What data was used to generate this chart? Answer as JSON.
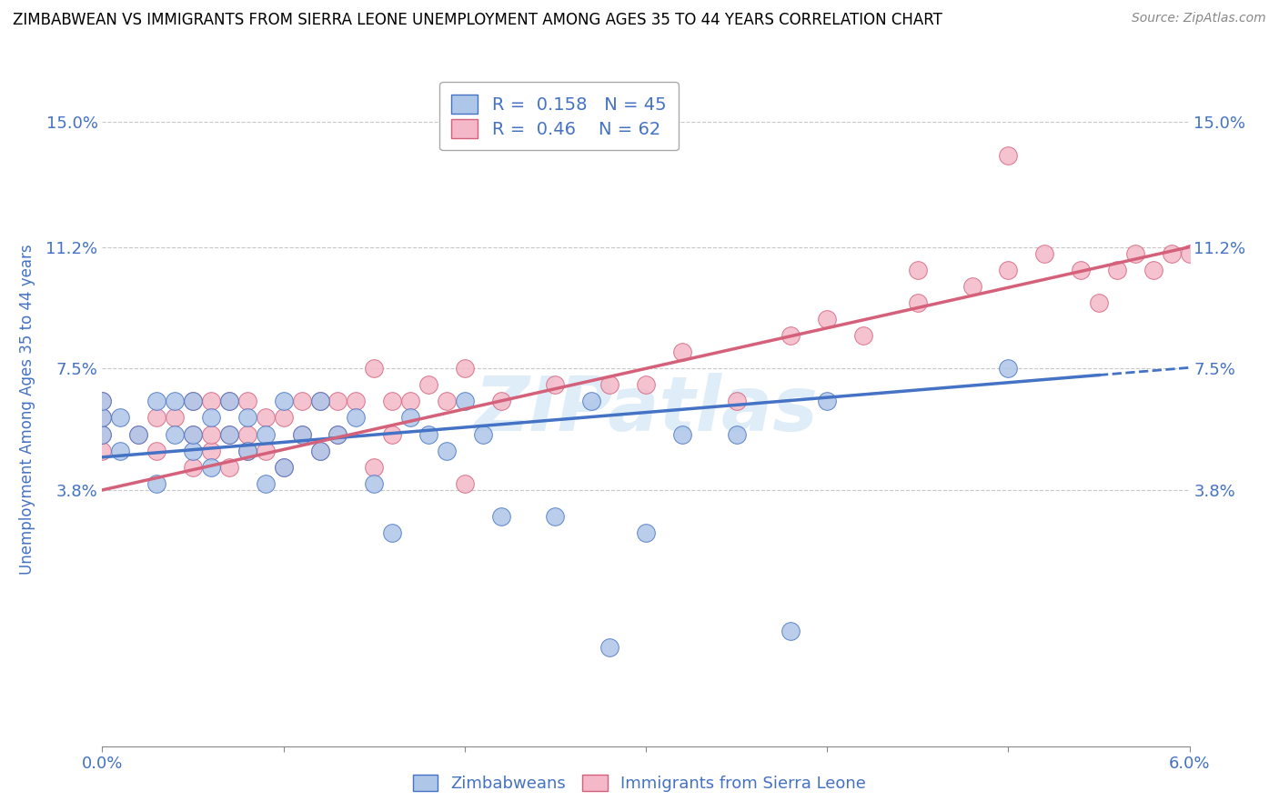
{
  "title": "ZIMBABWEAN VS IMMIGRANTS FROM SIERRA LEONE UNEMPLOYMENT AMONG AGES 35 TO 44 YEARS CORRELATION CHART",
  "source": "Source: ZipAtlas.com",
  "ylabel": "Unemployment Among Ages 35 to 44 years",
  "xlim": [
    0.0,
    0.06
  ],
  "ylim": [
    -0.04,
    0.165
  ],
  "yticks": [
    0.038,
    0.075,
    0.112,
    0.15
  ],
  "ytick_labels": [
    "3.8%",
    "7.5%",
    "11.2%",
    "15.0%"
  ],
  "xticks": [
    0.0,
    0.01,
    0.02,
    0.03,
    0.04,
    0.05,
    0.06
  ],
  "xtick_labels": [
    "0.0%",
    "",
    "",
    "",
    "",
    "",
    "6.0%"
  ],
  "R_zim": 0.158,
  "N_zim": 45,
  "R_sl": 0.46,
  "N_sl": 62,
  "zim_color": "#aec6e8",
  "sl_color": "#f4b8c8",
  "zim_line_color": "#4472c4",
  "sl_line_color": "#d4607a",
  "label_color": "#4472c4",
  "watermark": "ZIPatlas",
  "background_color": "#ffffff",
  "grid_color": "#c8c8c8",
  "zim_scatter_x": [
    0.0,
    0.0,
    0.0,
    0.001,
    0.001,
    0.002,
    0.003,
    0.003,
    0.004,
    0.004,
    0.005,
    0.005,
    0.005,
    0.006,
    0.006,
    0.007,
    0.007,
    0.008,
    0.008,
    0.009,
    0.009,
    0.01,
    0.01,
    0.011,
    0.012,
    0.012,
    0.013,
    0.014,
    0.015,
    0.016,
    0.017,
    0.018,
    0.019,
    0.02,
    0.021,
    0.022,
    0.025,
    0.027,
    0.028,
    0.03,
    0.032,
    0.035,
    0.038,
    0.04,
    0.05
  ],
  "zim_scatter_y": [
    0.055,
    0.06,
    0.065,
    0.05,
    0.06,
    0.055,
    0.04,
    0.065,
    0.055,
    0.065,
    0.05,
    0.055,
    0.065,
    0.045,
    0.06,
    0.055,
    0.065,
    0.05,
    0.06,
    0.04,
    0.055,
    0.045,
    0.065,
    0.055,
    0.05,
    0.065,
    0.055,
    0.06,
    0.04,
    0.025,
    0.06,
    0.055,
    0.05,
    0.065,
    0.055,
    0.03,
    0.03,
    0.065,
    -0.01,
    0.025,
    0.055,
    0.055,
    -0.005,
    0.065,
    0.075
  ],
  "sl_scatter_x": [
    0.0,
    0.0,
    0.0,
    0.0,
    0.002,
    0.003,
    0.003,
    0.004,
    0.005,
    0.005,
    0.005,
    0.006,
    0.006,
    0.006,
    0.007,
    0.007,
    0.007,
    0.008,
    0.008,
    0.008,
    0.009,
    0.009,
    0.01,
    0.01,
    0.011,
    0.011,
    0.012,
    0.012,
    0.013,
    0.013,
    0.014,
    0.015,
    0.015,
    0.016,
    0.016,
    0.017,
    0.018,
    0.019,
    0.02,
    0.02,
    0.022,
    0.025,
    0.028,
    0.03,
    0.032,
    0.035,
    0.038,
    0.04,
    0.042,
    0.045,
    0.048,
    0.05,
    0.052,
    0.054,
    0.055,
    0.056,
    0.057,
    0.058,
    0.059,
    0.06,
    0.045,
    0.05
  ],
  "sl_scatter_y": [
    0.05,
    0.055,
    0.06,
    0.065,
    0.055,
    0.05,
    0.06,
    0.06,
    0.045,
    0.055,
    0.065,
    0.05,
    0.055,
    0.065,
    0.045,
    0.055,
    0.065,
    0.05,
    0.055,
    0.065,
    0.05,
    0.06,
    0.045,
    0.06,
    0.055,
    0.065,
    0.05,
    0.065,
    0.055,
    0.065,
    0.065,
    0.045,
    0.075,
    0.055,
    0.065,
    0.065,
    0.07,
    0.065,
    0.04,
    0.075,
    0.065,
    0.07,
    0.07,
    0.07,
    0.08,
    0.065,
    0.085,
    0.09,
    0.085,
    0.095,
    0.1,
    0.105,
    0.11,
    0.105,
    0.095,
    0.105,
    0.11,
    0.105,
    0.11,
    0.11,
    0.105,
    0.14
  ],
  "zim_line_x0": 0.0,
  "zim_line_y0": 0.048,
  "zim_line_x1": 0.055,
  "zim_line_y1": 0.073,
  "sl_line_x0": 0.0,
  "sl_line_y0": 0.038,
  "sl_line_x1": 0.06,
  "sl_line_y1": 0.112
}
